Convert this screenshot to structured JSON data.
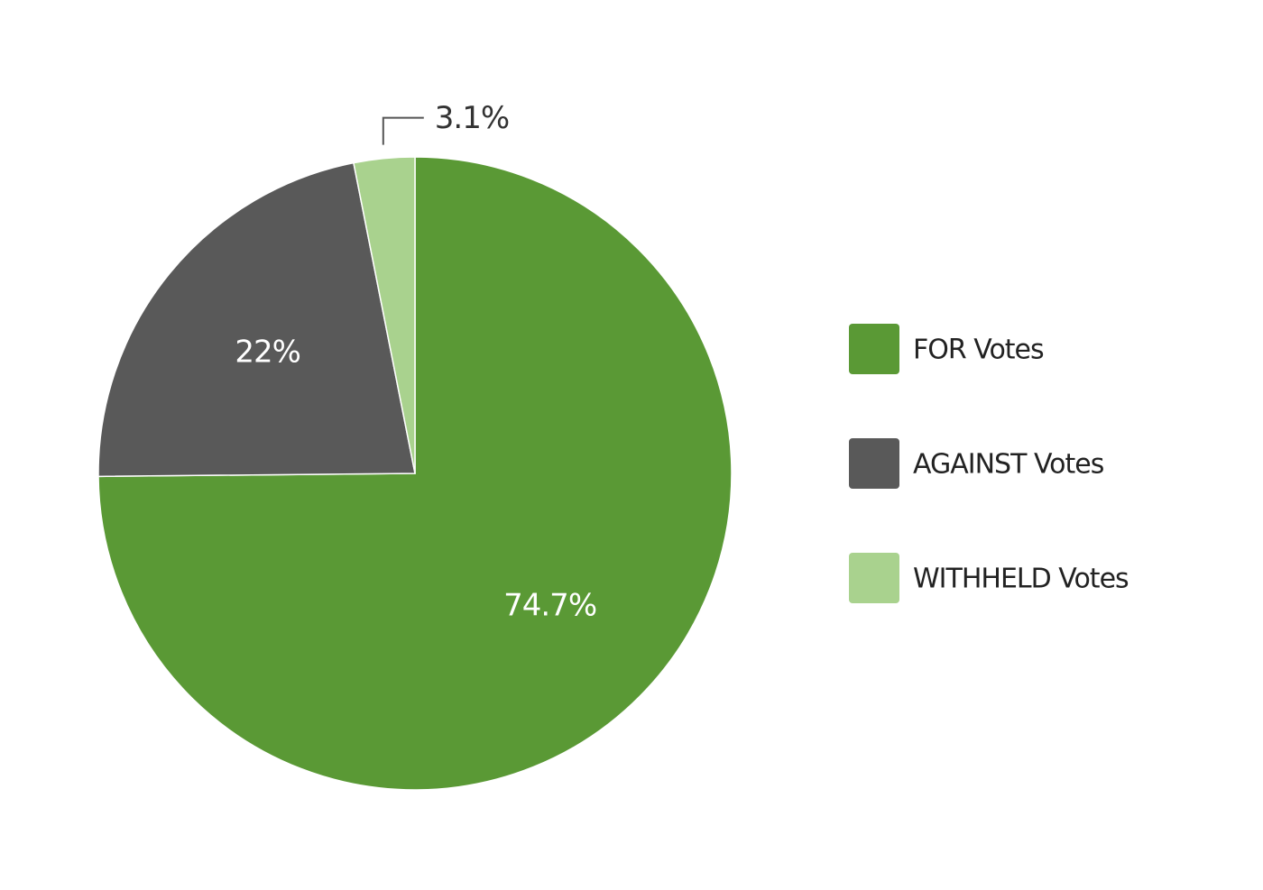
{
  "chart_data": {
    "type": "pie",
    "categories": [
      "FOR Votes",
      "AGAINST Votes",
      "WITHHELD Votes"
    ],
    "values": [
      74.7,
      22,
      3.1
    ],
    "value_labels": [
      "74.7%",
      "22%",
      "3.1%"
    ],
    "colors": [
      "#5a9935",
      "#595959",
      "#a9d28e"
    ],
    "legend": "right"
  }
}
